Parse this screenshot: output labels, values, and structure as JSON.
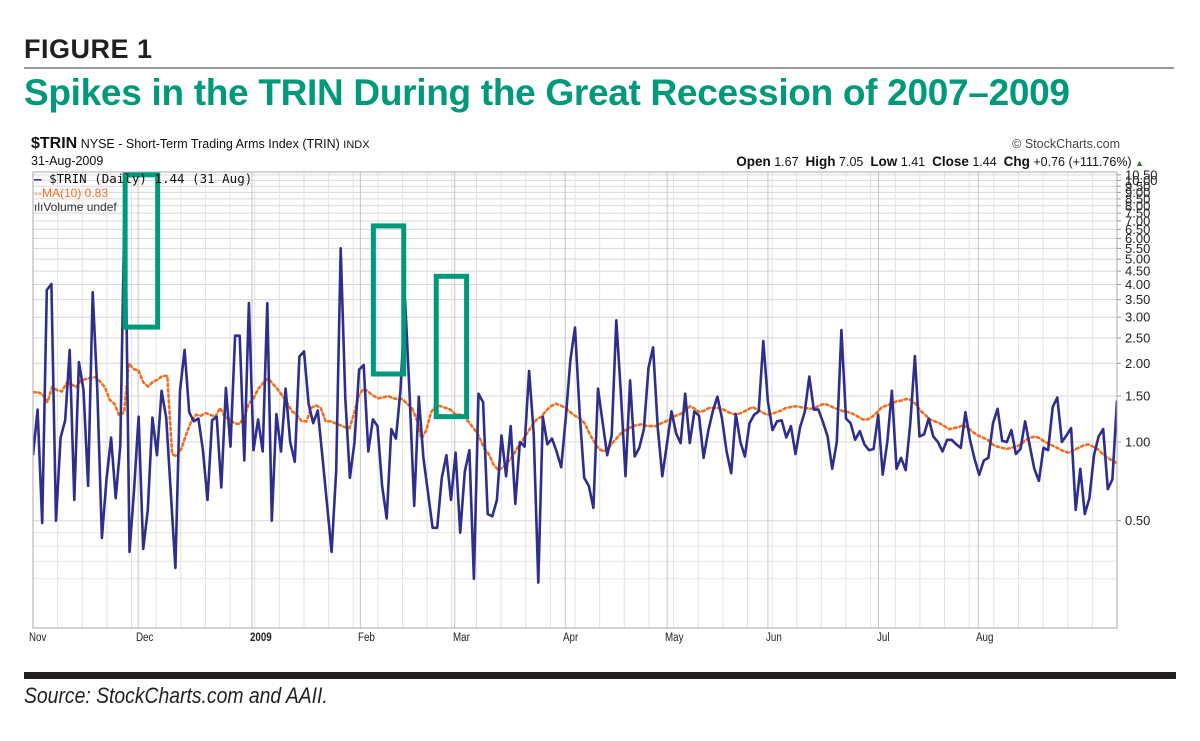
{
  "figure": {
    "label": "FIGURE 1",
    "title": "Spikes in the TRIN During the Great Recession of 2007–2009",
    "source": "Source: StockCharts.com and AAII."
  },
  "header": {
    "symbol": "$TRIN",
    "description": "NYSE - Short-Term Trading Arms Index (TRIN)",
    "exchange": "INDX",
    "date": "31-Aug-2009",
    "copyright": "© StockCharts.com",
    "open_label": "Open",
    "open": "1.67",
    "high_label": "High",
    "high": "7.05",
    "low_label": "Low",
    "low": "1.41",
    "close_label": "Close",
    "close": "1.44",
    "chg_label": "Chg",
    "chg": "+0.76 (+111.76%)",
    "chg_icon": "up-triangle-icon"
  },
  "legend": {
    "trin": "$TRIN (Daily) 1.44 (31 Aug)",
    "ma": "MA(10) 0.83",
    "volume": "Volume undef"
  },
  "colors": {
    "trin_line": "#2e2e8c",
    "ma_line": "#f07020",
    "highlight_box": "#009a7a",
    "title": "#009a7a",
    "grid": "#d8d8d8"
  },
  "chart_data": {
    "type": "line",
    "title": "$TRIN NYSE - Short-Term Trading Arms Index (TRIN)",
    "xlabel": "",
    "ylabel": "",
    "yscale": "log",
    "ylim": [
      0.3,
      10.5
    ],
    "grid": true,
    "legend_position": "top-left",
    "x_range": [
      "Nov 2008",
      "31-Aug-2009"
    ],
    "x_ticks": [
      {
        "label": "Nov",
        "bold": false,
        "pos": 0.0
      },
      {
        "label": "Dec",
        "bold": false,
        "pos": 0.097
      },
      {
        "label": "2009",
        "bold": true,
        "pos": 0.202
      },
      {
        "label": "Feb",
        "bold": false,
        "pos": 0.302
      },
      {
        "label": "Mar",
        "bold": false,
        "pos": 0.389
      },
      {
        "label": "Apr",
        "bold": false,
        "pos": 0.491
      },
      {
        "label": "May",
        "bold": false,
        "pos": 0.585
      },
      {
        "label": "Jun",
        "bold": false,
        "pos": 0.678
      },
      {
        "label": "Jul",
        "bold": false,
        "pos": 0.78
      },
      {
        "label": "Aug",
        "bold": false,
        "pos": 0.872
      }
    ],
    "y_ticks": [
      "0.50",
      "1.00",
      "1.50",
      "2.00",
      "2.50",
      "3.00",
      "3.50",
      "4.00",
      "4.50",
      "5.00",
      "5.50",
      "6.00",
      "6.50",
      "7.00",
      "7.50",
      "8.00",
      "8.50",
      "9.00",
      "9.50",
      "10.00",
      "10.50"
    ],
    "series": [
      {
        "name": "$TRIN (Daily)",
        "style": "solid",
        "values": [
          0.89,
          1.33,
          0.49,
          3.81,
          4.02,
          0.5,
          1.04,
          1.21,
          2.25,
          0.6,
          2.02,
          1.58,
          0.68,
          3.74,
          1.58,
          0.43,
          0.72,
          1.04,
          0.61,
          0.97,
          9.6,
          0.38,
          0.66,
          1.25,
          0.39,
          0.55,
          1.24,
          0.89,
          1.57,
          1.24,
          0.64,
          0.33,
          1.57,
          2.25,
          1.3,
          1.2,
          1.23,
          0.93,
          0.6,
          1.21,
          1.25,
          0.67,
          1.61,
          0.96,
          2.55,
          2.55,
          0.85,
          3.4,
          0.93,
          1.22,
          0.92,
          3.4,
          0.5,
          1.28,
          0.92,
          1.6,
          1.0,
          0.84,
          2.12,
          2.22,
          1.4,
          1.18,
          1.32,
          0.88,
          0.58,
          0.38,
          0.78,
          5.5,
          1.47,
          0.73,
          1.0,
          1.89,
          1.97,
          0.92,
          1.22,
          1.15,
          0.68,
          0.51,
          1.12,
          1.03,
          1.58,
          3.5,
          1.52,
          0.57,
          1.49,
          0.87,
          0.64,
          0.47,
          0.47,
          0.73,
          0.89,
          0.6,
          0.91,
          0.45,
          0.77,
          0.93,
          0.3,
          1.53,
          1.42,
          0.53,
          0.52,
          0.6,
          1.06,
          0.74,
          1.15,
          0.58,
          1.0,
          0.96,
          1.87,
          1.08,
          0.29,
          1.25,
          0.98,
          1.03,
          0.92,
          0.8,
          1.24,
          2.06,
          2.74,
          1.3,
          0.73,
          0.68,
          0.56,
          1.6,
          1.19,
          0.89,
          1.06,
          2.92,
          1.53,
          0.74,
          1.72,
          0.88,
          0.95,
          1.12,
          1.92,
          2.3,
          1.14,
          0.74,
          0.98,
          1.31,
          1.08,
          0.99,
          1.53,
          0.99,
          1.31,
          1.26,
          0.87,
          1.1,
          1.31,
          1.49,
          1.23,
          0.92,
          0.76,
          1.28,
          1.0,
          0.88,
          1.18,
          1.27,
          1.31,
          2.43,
          1.43,
          1.11,
          1.2,
          1.21,
          1.04,
          1.15,
          0.9,
          1.14,
          1.3,
          1.78,
          1.33,
          1.33,
          1.19,
          1.05,
          0.79,
          1.0,
          2.68,
          1.23,
          1.18,
          1.02,
          1.1,
          0.98,
          0.93,
          0.94,
          1.27,
          0.75,
          1.0,
          1.57,
          0.79,
          0.87,
          0.78,
          1.18,
          2.13,
          1.05,
          1.07,
          1.23,
          1.05,
          1.0,
          0.92,
          1.02,
          1.02,
          0.98,
          0.95,
          1.3,
          1.02,
          0.86,
          0.75,
          0.85,
          0.87,
          1.18,
          1.34,
          1.01,
          1.0,
          1.11,
          0.9,
          0.94,
          1.2,
          0.97,
          0.79,
          0.71,
          0.95,
          0.93,
          1.36,
          1.48,
          1.0,
          1.06,
          1.13,
          0.55,
          0.79,
          0.53,
          0.61,
          0.89,
          1.05,
          1.12,
          0.66,
          0.72,
          1.44
        ]
      },
      {
        "name": "MA(10)",
        "style": "dotted",
        "values": [
          1.55,
          1.55,
          1.52,
          1.42,
          1.62,
          1.58,
          1.56,
          1.68,
          1.66,
          1.62,
          1.72,
          1.74,
          1.76,
          1.77,
          1.7,
          1.62,
          1.45,
          1.4,
          1.26,
          1.3,
          2.0,
          1.9,
          1.88,
          1.69,
          1.63,
          1.7,
          1.73,
          1.79,
          1.79,
          0.9,
          0.88,
          0.95,
          1.08,
          1.2,
          1.27,
          1.26,
          1.29,
          1.27,
          1.25,
          1.35,
          1.25,
          1.22,
          1.18,
          1.17,
          1.24,
          1.4,
          1.47,
          1.6,
          1.68,
          1.75,
          1.67,
          1.59,
          1.5,
          1.41,
          1.31,
          1.27,
          1.2,
          1.2,
          1.35,
          1.38,
          1.35,
          1.2,
          1.2,
          1.18,
          1.16,
          1.14,
          1.13,
          1.3,
          1.52,
          1.6,
          1.55,
          1.5,
          1.47,
          1.48,
          1.5,
          1.47,
          1.46,
          1.46,
          1.4,
          1.35,
          1.22,
          1.03,
          1.11,
          1.3,
          1.38,
          1.37,
          1.35,
          1.33,
          1.28,
          1.27,
          1.25,
          1.18,
          1.12,
          1.05,
          0.95,
          0.9,
          0.82,
          0.78,
          0.8,
          0.84,
          0.88,
          0.95,
          1.01,
          1.08,
          1.15,
          1.22,
          1.25,
          1.32,
          1.37,
          1.4,
          1.38,
          1.35,
          1.3,
          1.26,
          1.23,
          1.18,
          1.08,
          1.0,
          0.94,
          0.92,
          0.95,
          1.0,
          1.05,
          1.1,
          1.12,
          1.15,
          1.16,
          1.17,
          1.15,
          1.15,
          1.15,
          1.18,
          1.2,
          1.23,
          1.26,
          1.28,
          1.32,
          1.37,
          1.34,
          1.3,
          1.32,
          1.35,
          1.35,
          1.35,
          1.33,
          1.3,
          1.28,
          1.28,
          1.3,
          1.33,
          1.36,
          1.33,
          1.3,
          1.27,
          1.28,
          1.3,
          1.32,
          1.35,
          1.36,
          1.37,
          1.36,
          1.35,
          1.34,
          1.35,
          1.38,
          1.4,
          1.38,
          1.35,
          1.33,
          1.31,
          1.3,
          1.28,
          1.25,
          1.22,
          1.22,
          1.25,
          1.3,
          1.36,
          1.38,
          1.4,
          1.43,
          1.44,
          1.46,
          1.45,
          1.4,
          1.32,
          1.27,
          1.22,
          1.2,
          1.18,
          1.15,
          1.12,
          1.13,
          1.14,
          1.16,
          1.13,
          1.09,
          1.06,
          1.04,
          1.02,
          0.98,
          0.96,
          0.95,
          0.94,
          0.95,
          0.96,
          0.98,
          1.02,
          1.04,
          1.05,
          1.03,
          1.0,
          0.98,
          0.96,
          0.94,
          0.92,
          0.91,
          0.93,
          0.95,
          0.97,
          0.98,
          0.96,
          0.94,
          0.9,
          0.87,
          0.85,
          0.83
        ]
      }
    ],
    "annotations": [
      {
        "type": "box",
        "label": "spike-1",
        "pos_range": [
          0.085,
          0.115
        ],
        "value_range": [
          2.75,
          10.5
        ]
      },
      {
        "type": "box",
        "label": "spike-2",
        "pos_range": [
          0.314,
          0.342
        ],
        "value_range": [
          1.82,
          6.7
        ]
      },
      {
        "type": "box",
        "label": "spike-3",
        "pos_range": [
          0.372,
          0.4
        ],
        "value_range": [
          1.25,
          4.3
        ]
      }
    ]
  }
}
